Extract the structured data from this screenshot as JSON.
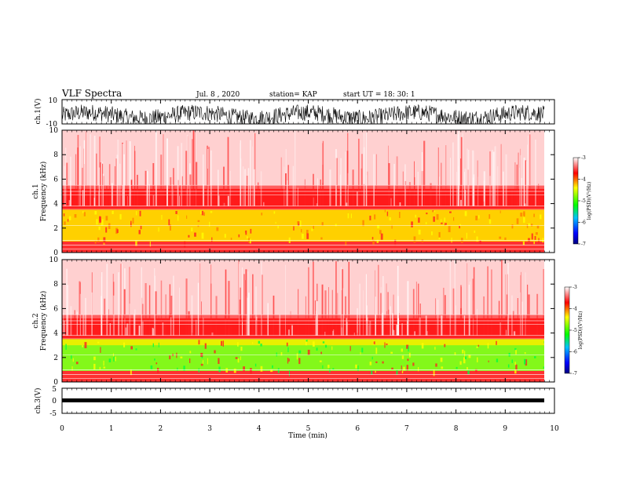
{
  "header": {
    "title": "VLF Spectra",
    "date": "Jul. 8 , 2020",
    "station": "station= KAP",
    "start_ut": "start UT = 18: 30: 1"
  },
  "chart_data": [
    {
      "type": "line",
      "panel": "ch1-waveform",
      "ylabel": "ch.1(V)",
      "ylim": [
        -10,
        10
      ],
      "yticks": [
        "10",
        "-10"
      ],
      "xlim": [
        0,
        10
      ],
      "description_series": "dense noise trace mostly between -10 and 5 V"
    },
    {
      "type": "heatmap",
      "panel": "ch1-spectrogram",
      "ylabel": "ch.1\nFrequency (kHz)",
      "ylabel_line1": "ch.1",
      "ylabel_line2": "Frequency (kHz)",
      "ylim": [
        0,
        10
      ],
      "yticks": [
        "0",
        "2",
        "4",
        "6",
        "8",
        "10"
      ],
      "xlim": [
        0,
        10
      ],
      "colorbar": {
        "label": "log(PSD)(V²/Hz)",
        "range": [
          -7,
          -3
        ],
        "ticks": [
          "-3",
          "-4",
          "-5",
          "-6",
          "-7"
        ]
      }
    },
    {
      "type": "heatmap",
      "panel": "ch2-spectrogram",
      "ylabel_line1": "ch.2",
      "ylabel_line2": "Frequency (kHz)",
      "ylim": [
        0,
        10
      ],
      "yticks": [
        "0",
        "2",
        "4",
        "6",
        "8",
        "10"
      ],
      "xlim": [
        0,
        10
      ],
      "colorbar": {
        "label": "log(PSD)(V²/Hz)",
        "range": [
          -7,
          -3
        ],
        "ticks": [
          "-3",
          "-4",
          "-5",
          "-6",
          "-7"
        ]
      }
    },
    {
      "type": "line",
      "panel": "ch3-waveform",
      "ylabel": "ch.3(V)",
      "ylim": [
        -5,
        5
      ],
      "yticks": [
        "5",
        "0",
        "-5"
      ],
      "xlim": [
        0,
        10
      ],
      "xlabel": "Time (min)",
      "xticks": [
        "0",
        "1",
        "2",
        "3",
        "4",
        "5",
        "6",
        "7",
        "8",
        "9",
        "10"
      ]
    }
  ],
  "colors": {
    "spectrogram_high": "#ff0000",
    "spectrogram_mid": "#ffff00",
    "spectrogram_low": "#00ff00",
    "trace": "#000000"
  }
}
